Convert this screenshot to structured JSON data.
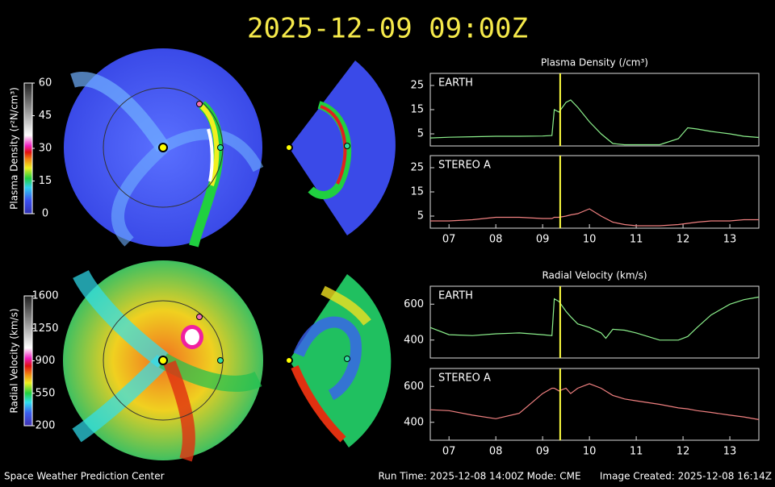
{
  "header": {
    "title": "2025-12-09  09:00Z"
  },
  "colorbars": [
    {
      "label": "Plasma Density (r²N/cm³)",
      "lim": [
        0,
        60
      ],
      "ticks": [
        0,
        15,
        30,
        45,
        60
      ]
    },
    {
      "label": "Radial Velocity (km/s)",
      "lim": [
        200,
        1600
      ],
      "ticks": [
        200,
        550,
        900,
        1250,
        1600
      ]
    }
  ],
  "chart_data": [
    {
      "type": "line",
      "title": "Plasma Density (/cm³)",
      "xlim": [
        6.6,
        13.62
      ],
      "ylim": [
        0,
        30
      ],
      "yticks": [
        5,
        15,
        25
      ],
      "time_marker": 9.375,
      "marker_color": "#ffff40",
      "x": [
        6.6,
        7.0,
        7.5,
        8.0,
        8.5,
        9.0,
        9.2,
        9.25,
        9.35,
        9.5,
        9.6,
        9.75,
        10.0,
        10.25,
        10.5,
        10.75,
        11.0,
        11.5,
        11.9,
        12.1,
        12.3,
        12.6,
        13.0,
        13.3,
        13.62
      ],
      "series": [
        {
          "name": "EARTH",
          "color": "#8cf08c",
          "values": [
            3.3,
            3.6,
            3.8,
            4.0,
            4.0,
            4.1,
            4.3,
            15,
            14,
            18,
            19,
            16,
            10,
            5,
            1.0,
            0.5,
            0.5,
            0.5,
            3,
            7.5,
            7,
            6,
            5,
            4,
            3.5
          ]
        }
      ]
    },
    {
      "type": "line",
      "xlim": [
        6.6,
        13.62
      ],
      "ylim": [
        0,
        30
      ],
      "yticks": [
        5,
        15,
        25
      ],
      "time_marker": 9.375,
      "marker_color": "#ffff40",
      "xticks": [
        {
          "value": 7,
          "label": "07"
        },
        {
          "value": 8,
          "label": "08"
        },
        {
          "value": 9,
          "label": "09"
        },
        10,
        11,
        12,
        13
      ],
      "x": [
        6.6,
        7.0,
        7.5,
        8.0,
        8.5,
        9.0,
        9.2,
        9.25,
        9.35,
        9.5,
        9.6,
        9.75,
        10.0,
        10.25,
        10.5,
        10.75,
        11.0,
        11.5,
        11.9,
        12.1,
        12.3,
        12.6,
        13.0,
        13.3,
        13.62
      ],
      "series": [
        {
          "name": "STEREO A",
          "color": "#f08080",
          "values": [
            3,
            3,
            3.5,
            4.5,
            4.5,
            4,
            4,
            4.5,
            4.5,
            5,
            5.5,
            6,
            8,
            5,
            2.5,
            1.5,
            1,
            1,
            1.5,
            2,
            2.5,
            3,
            3,
            3.5,
            3.5
          ]
        }
      ]
    },
    {
      "type": "line",
      "title": "Radial Velocity (km/s)",
      "xlim": [
        6.6,
        13.62
      ],
      "ylim": [
        300,
        700
      ],
      "yticks": [
        400,
        600
      ],
      "time_marker": 9.375,
      "marker_color": "#ffff40",
      "x": [
        6.6,
        7.0,
        7.5,
        8.0,
        8.5,
        9.0,
        9.2,
        9.25,
        9.35,
        9.5,
        9.6,
        9.75,
        10.0,
        10.25,
        10.35,
        10.5,
        10.75,
        11.0,
        11.5,
        11.9,
        12.1,
        12.3,
        12.6,
        13.0,
        13.3,
        13.62
      ],
      "series": [
        {
          "name": "EARTH",
          "color": "#8cf08c",
          "values": [
            470,
            430,
            425,
            435,
            440,
            430,
            425,
            630,
            615,
            560,
            530,
            490,
            470,
            440,
            410,
            460,
            455,
            440,
            400,
            400,
            420,
            470,
            540,
            600,
            625,
            640
          ]
        }
      ]
    },
    {
      "type": "line",
      "xlim": [
        6.6,
        13.62
      ],
      "ylim": [
        300,
        700
      ],
      "yticks": [
        400,
        600
      ],
      "time_marker": 9.375,
      "marker_color": "#ffff40",
      "xticks": [
        {
          "value": 7,
          "label": "07"
        },
        {
          "value": 8,
          "label": "08"
        },
        {
          "value": 9,
          "label": "09"
        },
        10,
        11,
        12,
        13
      ],
      "x": [
        6.6,
        7.0,
        7.5,
        8.0,
        8.5,
        9.0,
        9.2,
        9.25,
        9.35,
        9.5,
        9.6,
        9.75,
        10.0,
        10.25,
        10.5,
        10.75,
        11.0,
        11.5,
        11.9,
        12.1,
        12.3,
        12.6,
        13.0,
        13.3,
        13.62
      ],
      "series": [
        {
          "name": "STEREO A",
          "color": "#f08080",
          "values": [
            470,
            465,
            440,
            420,
            450,
            560,
            590,
            590,
            575,
            590,
            560,
            590,
            615,
            590,
            550,
            530,
            520,
            500,
            480,
            475,
            465,
            455,
            440,
            430,
            415
          ]
        }
      ]
    }
  ],
  "footer": {
    "left": "Space Weather Prediction Center",
    "center": "Run Time: 2025-12-08 14:00Z  Mode: CME",
    "right": "Image Created: 2025-12-08 16:14Z"
  }
}
